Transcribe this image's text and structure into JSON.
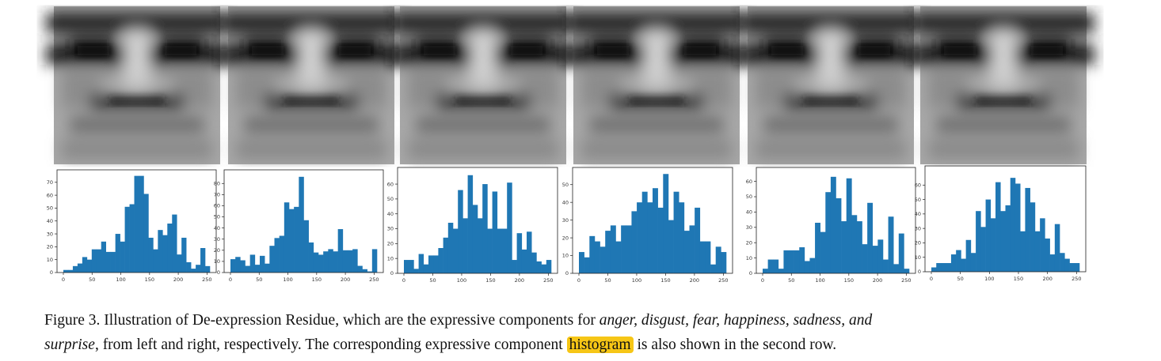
{
  "figure": {
    "faces": [
      {
        "emotion": "anger"
      },
      {
        "emotion": "disgust"
      },
      {
        "emotion": "fear"
      },
      {
        "emotion": "happiness"
      },
      {
        "emotion": "sadness"
      },
      {
        "emotion": "surprise"
      }
    ],
    "bar_color": "#1f77b4"
  },
  "chart_data": [
    {
      "type": "bar",
      "title": "",
      "xlabel": "",
      "ylabel": "",
      "xlim": [
        0,
        255
      ],
      "ylim": [
        0,
        76
      ],
      "grid": false,
      "x_ticks": [
        0,
        50,
        100,
        150,
        200,
        250
      ],
      "y_ticks": [
        0,
        10,
        20,
        30,
        40,
        50,
        60,
        70
      ],
      "values": [
        2,
        2,
        5,
        7,
        12,
        10,
        18,
        18,
        24,
        16,
        16,
        30,
        24,
        51,
        53,
        75,
        75,
        61,
        27,
        18,
        33,
        29,
        38,
        45,
        14,
        27,
        8,
        3,
        6,
        19,
        5
      ]
    },
    {
      "type": "bar",
      "title": "",
      "xlabel": "",
      "ylabel": "",
      "xlim": [
        0,
        255
      ],
      "ylim": [
        0,
        88
      ],
      "grid": false,
      "x_ticks": [
        0,
        50,
        100,
        150,
        200,
        250
      ],
      "y_ticks": [
        0,
        10,
        20,
        30,
        40,
        50,
        60,
        70,
        80
      ],
      "values": [
        12,
        14,
        11,
        6,
        16,
        7,
        15,
        8,
        24,
        31,
        33,
        63,
        57,
        59,
        86,
        47,
        27,
        18,
        16,
        19,
        21,
        19,
        39,
        20,
        20,
        21,
        6,
        3,
        1,
        21
      ]
    },
    {
      "type": "bar",
      "title": "",
      "xlabel": "",
      "ylabel": "",
      "xlim": [
        0,
        255
      ],
      "ylim": [
        0,
        68
      ],
      "grid": false,
      "x_ticks": [
        0,
        50,
        100,
        150,
        200,
        250
      ],
      "y_ticks": [
        0,
        10,
        20,
        30,
        40,
        50,
        60
      ],
      "values": [
        9,
        9,
        3,
        13,
        6,
        12,
        12,
        17,
        24,
        34,
        30,
        56,
        37,
        66,
        46,
        37,
        60,
        30,
        55,
        30,
        30,
        61,
        9,
        27,
        16,
        28,
        14,
        8,
        6,
        9
      ]
    },
    {
      "type": "bar",
      "title": "",
      "xlabel": "",
      "ylabel": "",
      "xlim": [
        0,
        255
      ],
      "ylim": [
        0,
        57
      ],
      "grid": false,
      "x_ticks": [
        0,
        50,
        100,
        150,
        200,
        250
      ],
      "y_ticks": [
        0,
        10,
        20,
        30,
        40,
        50
      ],
      "values": [
        12,
        9,
        21,
        18,
        15,
        24,
        27,
        18,
        27,
        27,
        35,
        40,
        46,
        40,
        48,
        37,
        56,
        30,
        46,
        40,
        24,
        27,
        37,
        18,
        18,
        5,
        15,
        12
      ]
    },
    {
      "type": "bar",
      "title": "",
      "xlabel": "",
      "ylabel": "",
      "xlim": [
        0,
        255
      ],
      "ylim": [
        0,
        66
      ],
      "grid": false,
      "x_ticks": [
        0,
        50,
        100,
        150,
        200,
        250
      ],
      "y_ticks": [
        0,
        10,
        20,
        30,
        40,
        50,
        60
      ],
      "values": [
        3,
        9,
        9,
        3,
        15,
        15,
        15,
        17,
        8,
        10,
        33,
        27,
        53,
        63,
        49,
        34,
        62,
        38,
        34,
        19,
        46,
        18,
        22,
        9,
        37,
        6,
        26,
        3
      ]
    },
    {
      "type": "bar",
      "title": "",
      "xlabel": "",
      "ylabel": "",
      "xlim": [
        0,
        255
      ],
      "ylim": [
        0,
        70
      ],
      "grid": false,
      "x_ticks": [
        0,
        50,
        100,
        150,
        200,
        250
      ],
      "y_ticks": [
        0,
        10,
        20,
        30,
        40,
        50,
        60
      ],
      "values": [
        3,
        6,
        6,
        6,
        12,
        15,
        9,
        22,
        13,
        42,
        31,
        50,
        37,
        62,
        42,
        46,
        65,
        61,
        28,
        58,
        48,
        28,
        37,
        23,
        12,
        33,
        13,
        9,
        6,
        6
      ]
    }
  ],
  "caption": {
    "label": "Figure 3.",
    "text1": " Illustration of De-expression Residue, which are the expressive components for ",
    "emotions": "anger, disgust, fear, happiness, sadness, and",
    "emotions_last": "surprise",
    "text2": ", from left and right, respectively. The corresponding expressive component ",
    "highlight": "histogram",
    "text3": " is also shown in the second row."
  }
}
